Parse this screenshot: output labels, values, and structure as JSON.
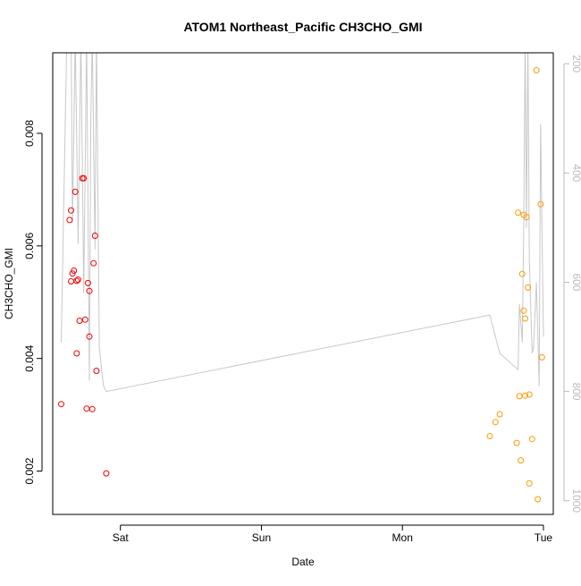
{
  "chart_data": {
    "type": "scatter",
    "title": "ATOM1 Northeast_Pacific CH3CHO_GMI",
    "xlabel": "Date",
    "ylabel": "CH3CHO_GMI",
    "x_unit": "days",
    "xlim": [
      -0.48,
      3.07
    ],
    "ylim": [
      0.00123,
      0.00943
    ],
    "x_ticks": [
      {
        "value": 0,
        "label": "Sat"
      },
      {
        "value": 1,
        "label": "Sun"
      },
      {
        "value": 2,
        "label": "Mon"
      },
      {
        "value": 3,
        "label": "Tue"
      }
    ],
    "y_ticks": [
      {
        "value": 0.002,
        "label": "0.002"
      },
      {
        "value": 0.004,
        "label": "0.004"
      },
      {
        "value": 0.006,
        "label": "0.006"
      },
      {
        "value": 0.008,
        "label": "0.008"
      }
    ],
    "right_axis": {
      "ylim": [
        180,
        1025
      ],
      "reversed": true,
      "ticks": [
        {
          "value": 200,
          "label": "200"
        },
        {
          "value": 400,
          "label": "400"
        },
        {
          "value": 600,
          "label": "600"
        },
        {
          "value": 800,
          "label": "800"
        },
        {
          "value": 1000,
          "label": "1000"
        }
      ],
      "color": "#bbbbbb"
    },
    "grid": false,
    "series": [
      {
        "color": "#ee0000",
        "marker": "open-circle",
        "points": [
          [
            -0.42,
            0.00319
          ],
          [
            -0.36,
            0.00646
          ],
          [
            -0.35,
            0.00663
          ],
          [
            -0.35,
            0.00537
          ],
          [
            -0.34,
            0.00551
          ],
          [
            -0.33,
            0.00556
          ],
          [
            -0.32,
            0.00696
          ],
          [
            -0.31,
            0.00538
          ],
          [
            -0.31,
            0.00409
          ],
          [
            -0.3,
            0.0054
          ],
          [
            -0.29,
            0.00467
          ],
          [
            -0.27,
            0.0072
          ],
          [
            -0.26,
            0.0072
          ],
          [
            -0.25,
            0.00469
          ],
          [
            -0.24,
            0.00311
          ],
          [
            -0.23,
            0.00534
          ],
          [
            -0.22,
            0.00439
          ],
          [
            -0.22,
            0.0052
          ],
          [
            -0.2,
            0.0031
          ],
          [
            -0.19,
            0.00569
          ],
          [
            -0.18,
            0.00618
          ],
          [
            -0.17,
            0.00378
          ],
          [
            -0.1,
            0.00196
          ]
        ]
      },
      {
        "color": "#ff9900",
        "marker": "open-circle",
        "points": [
          [
            2.62,
            0.00262
          ],
          [
            2.66,
            0.00287
          ],
          [
            2.69,
            0.00301
          ],
          [
            2.82,
            0.00659
          ],
          [
            2.83,
            0.00333
          ],
          [
            2.81,
            0.0025
          ],
          [
            2.84,
            0.00219
          ],
          [
            2.85,
            0.0055
          ],
          [
            2.86,
            0.00485
          ],
          [
            2.86,
            0.00655
          ],
          [
            2.87,
            0.00334
          ],
          [
            2.87,
            0.00471
          ],
          [
            2.88,
            0.00651
          ],
          [
            2.89,
            0.00526
          ],
          [
            2.9,
            0.00336
          ],
          [
            2.9,
            0.00178
          ],
          [
            2.92,
            0.00257
          ],
          [
            2.95,
            0.00912
          ],
          [
            2.96,
            0.0015
          ],
          [
            2.98,
            0.00674
          ],
          [
            2.99,
            0.00402
          ]
        ]
      }
    ],
    "pressure_line": {
      "color": "#c8c8c8",
      "axis": "right",
      "points": [
        [
          -0.42,
          710
        ],
        [
          -0.38,
          150
        ],
        [
          -0.35,
          150
        ],
        [
          -0.34,
          490
        ],
        [
          -0.32,
          150
        ],
        [
          -0.3,
          530
        ],
        [
          -0.28,
          150
        ],
        [
          -0.26,
          620
        ],
        [
          -0.24,
          150
        ],
        [
          -0.22,
          780
        ],
        [
          -0.21,
          300
        ],
        [
          -0.2,
          150
        ],
        [
          -0.18,
          540
        ],
        [
          -0.17,
          150
        ],
        [
          -0.15,
          720
        ],
        [
          -0.12,
          790
        ],
        [
          -0.1,
          800
        ],
        [
          2.62,
          660
        ],
        [
          2.69,
          730
        ],
        [
          2.82,
          760
        ],
        [
          2.83,
          640
        ],
        [
          2.85,
          710
        ],
        [
          2.86,
          500
        ],
        [
          2.87,
          150
        ],
        [
          2.88,
          500
        ],
        [
          2.89,
          150
        ],
        [
          2.9,
          560
        ],
        [
          2.92,
          730
        ],
        [
          2.93,
          720
        ],
        [
          2.95,
          600
        ],
        [
          2.97,
          790
        ],
        [
          2.98,
          310
        ],
        [
          3.0,
          700
        ]
      ]
    }
  }
}
